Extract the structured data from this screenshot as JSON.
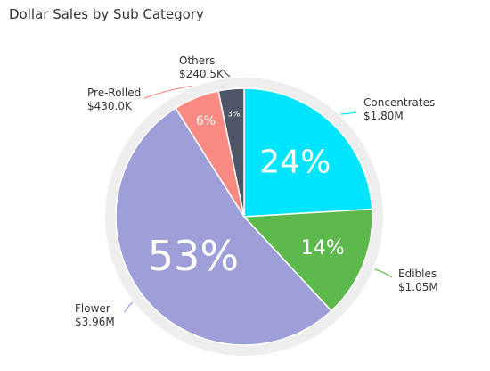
{
  "chart_data": {
    "type": "pie",
    "title": "Dollar Sales by Sub Category",
    "slices": [
      {
        "name": "Concentrates",
        "value": 1.8,
        "value_label": "$1.80M",
        "percent_label": "24%",
        "color": "#00E5FF"
      },
      {
        "name": "Edibles",
        "value": 1.05,
        "value_label": "$1.05M",
        "percent_label": "14%",
        "color": "#5DB94B"
      },
      {
        "name": "Flower",
        "value": 3.96,
        "value_label": "$3.96M",
        "percent_label": "53%",
        "color": "#9E9ED8"
      },
      {
        "name": "Pre-Rolled",
        "value": 0.43,
        "value_label": "$430.0K",
        "percent_label": "6%",
        "color": "#FA8A82"
      },
      {
        "name": "Others",
        "value": 0.2405,
        "value_label": "$240.5K",
        "percent_label": "3%",
        "color": "#4D5668"
      }
    ],
    "start_angle_deg": 0,
    "direction": "clockwise",
    "ring_color": "#EEEEEE"
  }
}
